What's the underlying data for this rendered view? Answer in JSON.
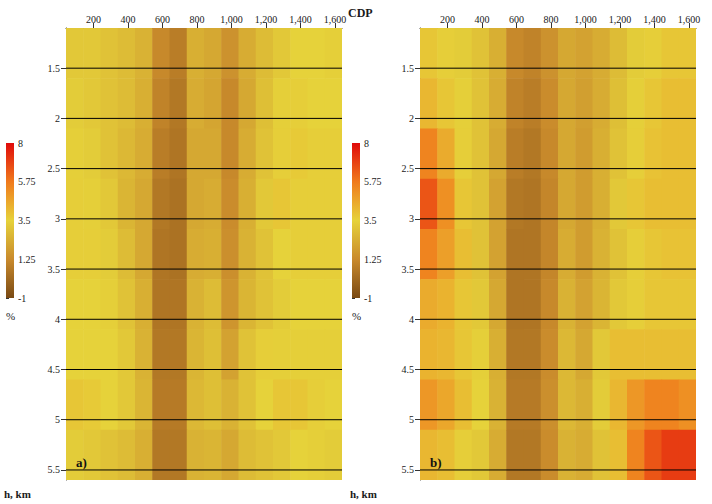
{
  "chart_data": [
    {
      "type": "heatmap",
      "label": "a)",
      "x_label": "CDP",
      "y_label": "h, km",
      "xlim": [
        40,
        1640
      ],
      "xticks": [
        200,
        400,
        600,
        800,
        1000,
        1200,
        1400,
        1600
      ],
      "ylim": [
        1.1,
        5.6
      ],
      "yticks": [
        1.5,
        2,
        2.5,
        3,
        3.5,
        4,
        4.5,
        5,
        5.5
      ],
      "grid": true,
      "x_bins": [
        40,
        140,
        240,
        340,
        440,
        540,
        640,
        740,
        840,
        940,
        1040,
        1140,
        1240,
        1340,
        1440,
        1540,
        1640
      ],
      "y_bins": [
        1.1,
        1.6,
        2.1,
        2.6,
        3.1,
        3.6,
        4.1,
        4.6,
        5.1,
        5.6
      ],
      "cells": [
        [
          3.2,
          3.2,
          3.0,
          2.8,
          2.5,
          1.2,
          0.8,
          2.4,
          2.2,
          1.5,
          2.3,
          2.8,
          3.2,
          3.5,
          3.5,
          3.4
        ],
        [
          3.3,
          3.2,
          3.0,
          2.8,
          2.4,
          1.0,
          0.6,
          2.3,
          2.1,
          1.2,
          2.2,
          2.9,
          3.4,
          3.6,
          3.5,
          3.5
        ],
        [
          3.4,
          3.3,
          3.0,
          2.7,
          2.3,
          0.8,
          0.5,
          2.2,
          2.2,
          1.2,
          2.3,
          3.0,
          3.6,
          3.7,
          3.6,
          3.6
        ],
        [
          3.6,
          3.4,
          3.2,
          2.6,
          2.2,
          0.6,
          0.4,
          2.2,
          2.3,
          1.3,
          2.4,
          3.2,
          3.8,
          3.6,
          3.6,
          3.6
        ],
        [
          3.6,
          3.6,
          3.3,
          2.8,
          2.2,
          0.5,
          0.4,
          2.3,
          2.4,
          1.4,
          2.5,
          3.0,
          3.5,
          3.6,
          3.6,
          3.6
        ],
        [
          3.5,
          3.5,
          3.4,
          3.0,
          2.4,
          0.5,
          0.5,
          2.5,
          2.8,
          1.6,
          2.6,
          3.0,
          3.3,
          3.5,
          3.5,
          3.5
        ],
        [
          3.5,
          3.5,
          3.5,
          3.2,
          2.5,
          0.6,
          0.6,
          2.6,
          2.9,
          2.0,
          3.0,
          3.6,
          3.4,
          3.4,
          3.4,
          3.4
        ],
        [
          3.8,
          3.7,
          3.5,
          3.2,
          2.6,
          0.7,
          0.7,
          2.7,
          2.9,
          2.5,
          3.0,
          3.5,
          3.8,
          3.8,
          3.6,
          3.5
        ],
        [
          3.3,
          3.2,
          3.0,
          2.8,
          2.4,
          0.6,
          0.6,
          2.5,
          2.6,
          2.2,
          2.8,
          3.0,
          3.2,
          3.5,
          3.4,
          3.3
        ]
      ],
      "colorbar_range": [
        -1,
        8
      ],
      "colorbar_ticks": [
        -1,
        1.25,
        3.5,
        5.75,
        8
      ],
      "colorbar_label": "%"
    },
    {
      "type": "heatmap",
      "label": "b)",
      "y_label": "h, km",
      "xlim": [
        40,
        1640
      ],
      "xticks": [
        200,
        400,
        600,
        800,
        1000,
        1200,
        1400,
        1600
      ],
      "ylim": [
        1.1,
        5.6
      ],
      "yticks": [
        1.5,
        2,
        2.5,
        3,
        3.5,
        4,
        4.5,
        5,
        5.5
      ],
      "grid": true,
      "x_bins": [
        40,
        140,
        240,
        340,
        440,
        540,
        640,
        740,
        840,
        940,
        1040,
        1140,
        1240,
        1340,
        1440,
        1540,
        1640
      ],
      "y_bins": [
        1.1,
        1.6,
        2.1,
        2.6,
        3.1,
        3.6,
        4.1,
        4.6,
        5.1,
        5.6
      ],
      "cells": [
        [
          3.8,
          3.6,
          3.3,
          3.0,
          2.4,
          1.2,
          1.0,
          1.5,
          2.2,
          2.0,
          2.3,
          2.8,
          3.3,
          3.6,
          3.8,
          3.8
        ],
        [
          4.2,
          3.8,
          3.4,
          3.0,
          2.3,
          1.0,
          0.8,
          1.3,
          2.2,
          1.9,
          2.3,
          2.9,
          3.4,
          3.8,
          4.0,
          4.0
        ],
        [
          5.5,
          4.5,
          3.6,
          3.0,
          2.2,
          0.8,
          0.6,
          1.2,
          2.2,
          1.8,
          2.4,
          3.0,
          3.6,
          3.9,
          4.0,
          4.0
        ],
        [
          6.5,
          5.2,
          3.8,
          3.0,
          2.0,
          0.6,
          0.5,
          1.1,
          2.2,
          1.8,
          2.4,
          3.2,
          3.8,
          4.0,
          4.0,
          4.0
        ],
        [
          5.5,
          4.8,
          4.0,
          3.0,
          2.0,
          0.5,
          0.5,
          1.1,
          2.3,
          1.8,
          2.5,
          3.0,
          3.6,
          3.8,
          3.9,
          3.9
        ],
        [
          4.5,
          4.3,
          3.8,
          3.2,
          2.2,
          0.5,
          0.5,
          1.2,
          2.5,
          2.0,
          2.6,
          3.2,
          3.6,
          3.8,
          3.8,
          3.8
        ],
        [
          4.3,
          4.2,
          3.8,
          3.4,
          2.4,
          0.6,
          0.6,
          1.3,
          2.7,
          2.2,
          3.2,
          4.0,
          4.0,
          4.0,
          4.0,
          4.0
        ],
        [
          5.0,
          4.6,
          4.0,
          3.5,
          2.5,
          0.7,
          0.7,
          1.4,
          2.7,
          2.4,
          3.3,
          4.2,
          5.0,
          5.5,
          5.5,
          5.2
        ],
        [
          4.2,
          4.0,
          3.6,
          3.2,
          2.3,
          0.6,
          0.6,
          1.3,
          2.5,
          2.3,
          3.0,
          4.0,
          5.5,
          6.5,
          7.0,
          7.0
        ]
      ],
      "colorbar_range": [
        -1,
        8
      ],
      "colorbar_ticks": [
        -1,
        1.25,
        3.5,
        5.75,
        8
      ],
      "colorbar_label": "%"
    }
  ]
}
